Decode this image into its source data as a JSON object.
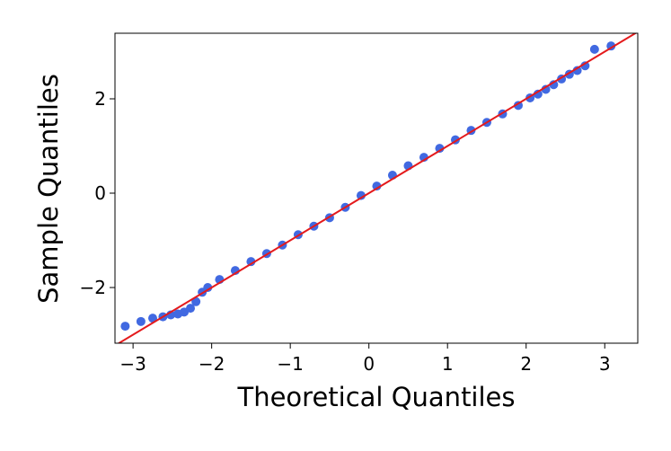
{
  "chart_data": {
    "type": "scatter",
    "xlabel": "Theoretical Quantiles",
    "ylabel": "Sample Quantiles",
    "xlim": [
      -3.23,
      3.42
    ],
    "ylim": [
      -3.18,
      3.39
    ],
    "xticks": [
      {
        "value": -3,
        "label": "−3"
      },
      {
        "value": -2,
        "label": "−2"
      },
      {
        "value": -1,
        "label": "−1"
      },
      0,
      1,
      2,
      3
    ],
    "yticks": [
      {
        "value": -2,
        "label": "−2"
      },
      0,
      2
    ],
    "series": [
      {
        "mode": "markers",
        "color": "#4169e1",
        "x": [
          -3.1,
          -2.9,
          -2.75,
          -2.62,
          -2.52,
          -2.43,
          -2.35,
          -2.27,
          -2.2,
          -2.12,
          -2.05,
          -1.9,
          -1.7,
          -1.5,
          -1.3,
          -1.1,
          -0.9,
          -0.7,
          -0.5,
          -0.3,
          -0.1,
          0.1,
          0.3,
          0.5,
          0.7,
          0.9,
          1.1,
          1.3,
          1.5,
          1.7,
          1.9,
          2.05,
          2.15,
          2.25,
          2.35,
          2.45,
          2.55,
          2.65,
          2.75,
          2.87,
          3.08
        ],
        "values": [
          -2.82,
          -2.72,
          -2.65,
          -2.62,
          -2.58,
          -2.56,
          -2.52,
          -2.44,
          -2.3,
          -2.1,
          -2.0,
          -1.83,
          -1.64,
          -1.45,
          -1.28,
          -1.1,
          -0.88,
          -0.7,
          -0.52,
          -0.3,
          -0.05,
          0.15,
          0.38,
          0.58,
          0.76,
          0.95,
          1.13,
          1.33,
          1.5,
          1.68,
          1.86,
          2.02,
          2.1,
          2.2,
          2.3,
          2.42,
          2.52,
          2.6,
          2.7,
          3.05,
          3.12
        ]
      },
      {
        "mode": "line",
        "color": "#e41a1c",
        "x": [
          -3.23,
          3.42
        ],
        "values": [
          -3.23,
          3.42
        ]
      }
    ]
  }
}
